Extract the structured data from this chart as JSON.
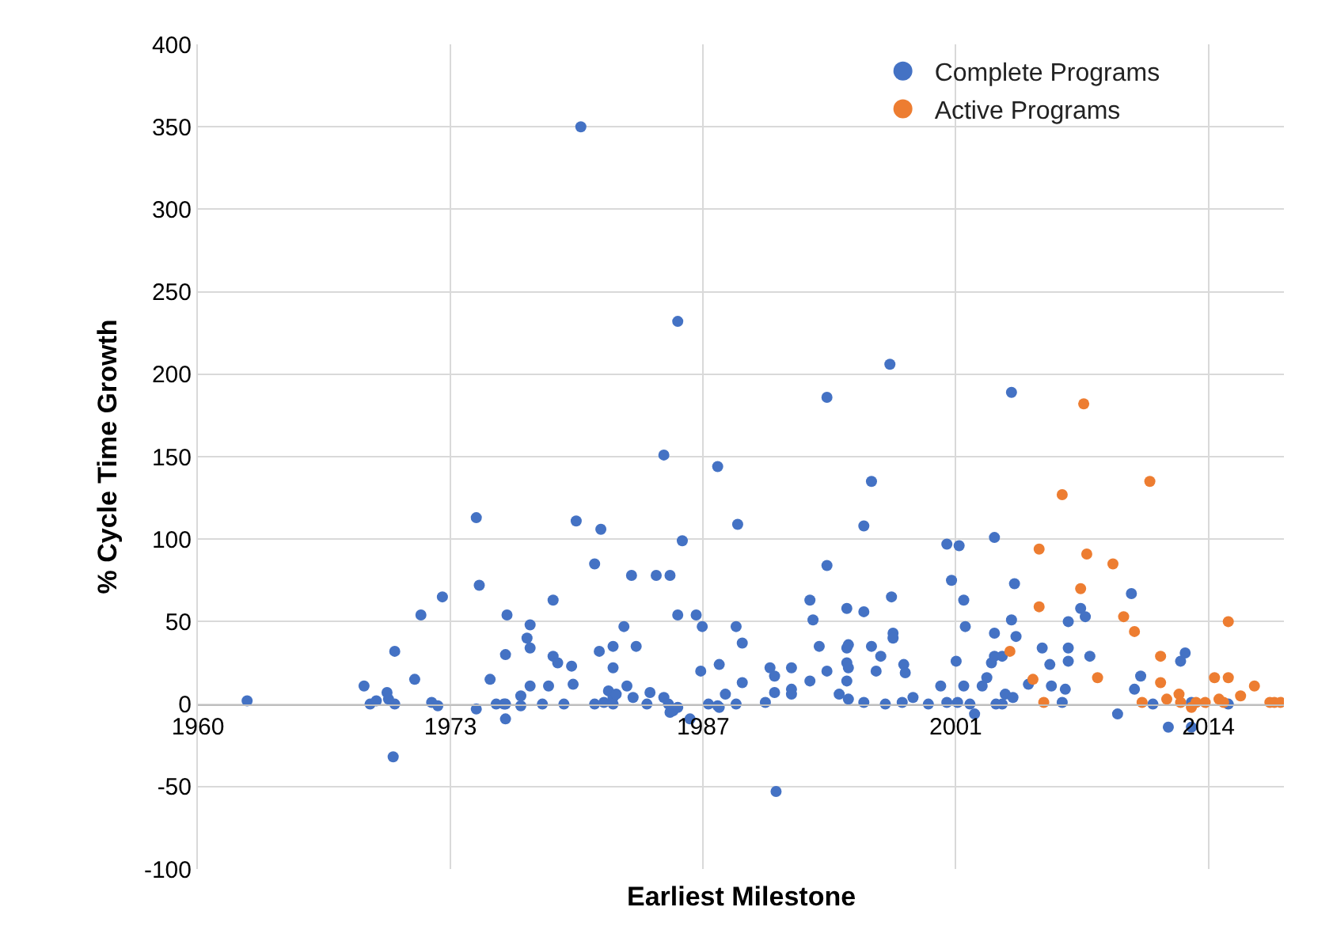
{
  "chart_data": {
    "type": "scatter",
    "xlabel": "Earliest Milestone",
    "ylabel": "% Cycle Time Growth",
    "xlim": [
      "1960-01-01",
      "2018-11-06"
    ],
    "xticks": [
      {
        "value": "1960-01-01",
        "label": "1960"
      },
      {
        "value": "1973-09-08",
        "label": "1973"
      },
      {
        "value": "1987-05-18",
        "label": "1987"
      },
      {
        "value": "2001-01-24",
        "label": "2001"
      },
      {
        "value": "2014-10-02",
        "label": "2014"
      }
    ],
    "ylim": [
      -100,
      400
    ],
    "yticks": [
      -100,
      -50,
      0,
      50,
      100,
      150,
      200,
      250,
      300,
      350,
      400
    ],
    "grid": true,
    "legend": "top right",
    "marker": "circle",
    "series": [
      {
        "name": "Complete Programs",
        "color": "#4472c4",
        "x": [
          "1962-09",
          "1969-01",
          "1969-05",
          "1969-09",
          "1970-04",
          "1970-09",
          "1970-05",
          "1970-09",
          "1970-08",
          "1971-10",
          "1972-02",
          "1972-09",
          "1973-01",
          "1973-04",
          "1975-02",
          "1975-02",
          "1975-04",
          "1975-11",
          "1976-03",
          "1976-08",
          "1976-09",
          "1976-09",
          "1976-09",
          "1976-10",
          "1977-07",
          "1977-07",
          "1978-01",
          "1977-11",
          "1978-01",
          "1978-01",
          "1978-09",
          "1979-01",
          "1979-04",
          "1979-04",
          "1979-07",
          "1979-11",
          "1980-04",
          "1980-05",
          "1980-07",
          "1980-10",
          "1981-07",
          "1981-07",
          "1981-11",
          "1981-10",
          "1982-01",
          "1982-04",
          "1982-07",
          "1982-07",
          "1982-09",
          "1982-07",
          "1982-07",
          "1983-02",
          "1983-07",
          "1983-10",
          "1983-04",
          "1983-08",
          "1984-05",
          "1984-07",
          "1984-11",
          "1985-08",
          "1985-04",
          "1985-04",
          "1985-07",
          "1985-08",
          "1985-10",
          "1986-01",
          "1986-01",
          "1986-01",
          "1986-04",
          "1986-09",
          "1987-01",
          "1987-05",
          "1987-04",
          "1987-09",
          "1988-03",
          "1988-03",
          "1988-04",
          "1988-08",
          "1988-04",
          "1989-03",
          "1989-07",
          "1989-07",
          "1989-03",
          "1989-04",
          "1990-10",
          "1991-01",
          "1991-04",
          "1991-04",
          "1991-05",
          "1992-03",
          "1992-03",
          "1992-03",
          "1993-03",
          "1993-05",
          "1993-09",
          "1993-03",
          "1994-02",
          "1994-02",
          "1994-02",
          "1994-10",
          "1995-03",
          "1995-03",
          "1995-03",
          "1995-04",
          "1995-04",
          "1995-04",
          "1996-02",
          "1995-03",
          "1996-02",
          "1996-07",
          "1996-10",
          "1997-01",
          "1996-02",
          "1996-07",
          "1997-07",
          "1997-08",
          "1997-09",
          "1997-09",
          "1997-04",
          "1998-03",
          "1998-04",
          "1998-05",
          "1998-10",
          "1999-08",
          "2000-04",
          "2000-08",
          "2001-02",
          "2001-03",
          "2001-07",
          "2001-11",
          "2002-02",
          "2001-08",
          "2001-07",
          "2000-11",
          "2000-08",
          "2001-04",
          "2002-07",
          "2002-10",
          "2003-01",
          "2003-03",
          "2003-03",
          "2003-08",
          "2003-08",
          "2003-10",
          "2004-02",
          "2004-03",
          "2004-05",
          "2004-04",
          "2003-04",
          "2003-03",
          "2004-02",
          "2005-01",
          "2005-10",
          "2006-03",
          "2006-04",
          "2007-01",
          "2006-11",
          "2007-03",
          "2007-03",
          "2007-03",
          "2007-11",
          "2008-02",
          "2008-05",
          "2009-11",
          "2010-08",
          "2011-02",
          "2010-10",
          "2011-10",
          "2012-08",
          "2013-11",
          "2013-04",
          "2013-07",
          "2013-11",
          "2015-11"
        ],
        "values": [
          2,
          11,
          0,
          2,
          7,
          0,
          3,
          32,
          -32,
          15,
          54,
          1,
          -1,
          65,
          113,
          -3,
          72,
          15,
          0,
          0,
          0,
          -9,
          30,
          54,
          5,
          -1,
          48,
          40,
          34,
          11,
          0,
          11,
          63,
          29,
          25,
          0,
          23,
          12,
          111,
          350,
          85,
          0,
          106,
          32,
          1,
          8,
          4,
          0,
          6,
          35,
          22,
          47,
          78,
          35,
          11,
          4,
          0,
          7,
          78,
          78,
          151,
          4,
          0,
          -5,
          -4,
          -2,
          54,
          232,
          99,
          -9,
          54,
          47,
          20,
          0,
          -1,
          144,
          24,
          6,
          -2,
          47,
          37,
          13,
          0,
          109,
          1,
          22,
          17,
          7,
          -53,
          22,
          9,
          6,
          63,
          51,
          35,
          14,
          20,
          84,
          186,
          6,
          34,
          25,
          14,
          36,
          22,
          3,
          1,
          58,
          56,
          35,
          20,
          29,
          108,
          135,
          206,
          65,
          43,
          40,
          0,
          1,
          24,
          19,
          4,
          0,
          11,
          1,
          26,
          1,
          11,
          0,
          -6,
          47,
          63,
          75,
          97,
          96,
          11,
          16,
          25,
          29,
          43,
          29,
          0,
          6,
          51,
          4,
          41,
          73,
          0,
          101,
          189,
          12,
          34,
          24,
          11,
          9,
          1,
          50,
          34,
          26,
          58,
          53,
          29,
          -6,
          67,
          17,
          9,
          0,
          -14,
          -14,
          26,
          31,
          1,
          0
        ]
      },
      {
        "name": "Active Programs",
        "color": "#ed7d31",
        "x": [
          "2008-01",
          "2006-11",
          "2011-08",
          "2005-08",
          "2008-03",
          "2009-08",
          "2007-11",
          "2005-08",
          "2004-01",
          "2005-04",
          "2005-11",
          "2010-03",
          "2010-10",
          "2008-10",
          "2012-03",
          "2012-03",
          "2011-03",
          "2012-07",
          "2013-03",
          "2013-04",
          "2013-11",
          "2014-02",
          "2014-08",
          "2015-05",
          "2015-08",
          "2015-02",
          "2015-11",
          "2015-11",
          "2016-07",
          "2017-04",
          "2018-02",
          "2018-05",
          "2018-09"
        ],
        "values": [
          182,
          127,
          135,
          94,
          91,
          85,
          70,
          59,
          32,
          15,
          1,
          53,
          44,
          16,
          29,
          13,
          1,
          3,
          6,
          1,
          -2,
          1,
          1,
          3,
          1,
          16,
          16,
          50,
          5,
          11,
          1,
          1,
          1
        ]
      }
    ]
  }
}
